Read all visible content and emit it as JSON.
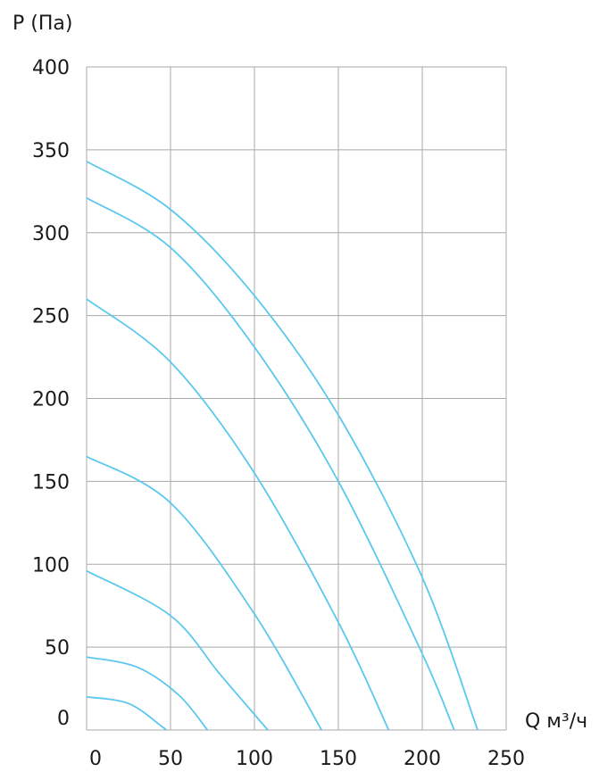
{
  "chart_data": {
    "type": "line",
    "xlabel": "Q м³/ч",
    "ylabel": "P (Па)",
    "xlim": [
      0,
      250
    ],
    "ylim": [
      0,
      400
    ],
    "x_ticks": [
      0,
      50,
      100,
      150,
      200,
      250
    ],
    "y_ticks": [
      0,
      50,
      100,
      150,
      200,
      250,
      300,
      350,
      400
    ],
    "grid": true,
    "line_color": "#5bc8ee",
    "series": [
      {
        "points": [
          [
            0,
            343
          ],
          [
            50,
            314
          ],
          [
            100,
            262
          ],
          [
            150,
            190
          ],
          [
            200,
            92
          ],
          [
            233,
            0
          ]
        ]
      },
      {
        "points": [
          [
            0,
            321
          ],
          [
            50,
            291
          ],
          [
            100,
            231
          ],
          [
            150,
            150
          ],
          [
            200,
            46
          ],
          [
            219,
            0
          ]
        ]
      },
      {
        "points": [
          [
            0,
            260
          ],
          [
            50,
            222
          ],
          [
            100,
            155
          ],
          [
            150,
            65
          ],
          [
            180,
            0
          ]
        ]
      },
      {
        "points": [
          [
            0,
            165
          ],
          [
            50,
            137
          ],
          [
            100,
            70
          ],
          [
            140,
            0
          ]
        ]
      },
      {
        "points": [
          [
            0,
            96
          ],
          [
            50,
            69
          ],
          [
            80,
            33
          ],
          [
            108,
            0
          ]
        ]
      },
      {
        "points": [
          [
            0,
            44
          ],
          [
            30,
            38
          ],
          [
            55,
            21
          ],
          [
            72,
            0
          ]
        ]
      },
      {
        "points": [
          [
            0,
            20
          ],
          [
            25,
            16
          ],
          [
            45,
            2
          ],
          [
            47,
            0
          ]
        ]
      }
    ]
  }
}
